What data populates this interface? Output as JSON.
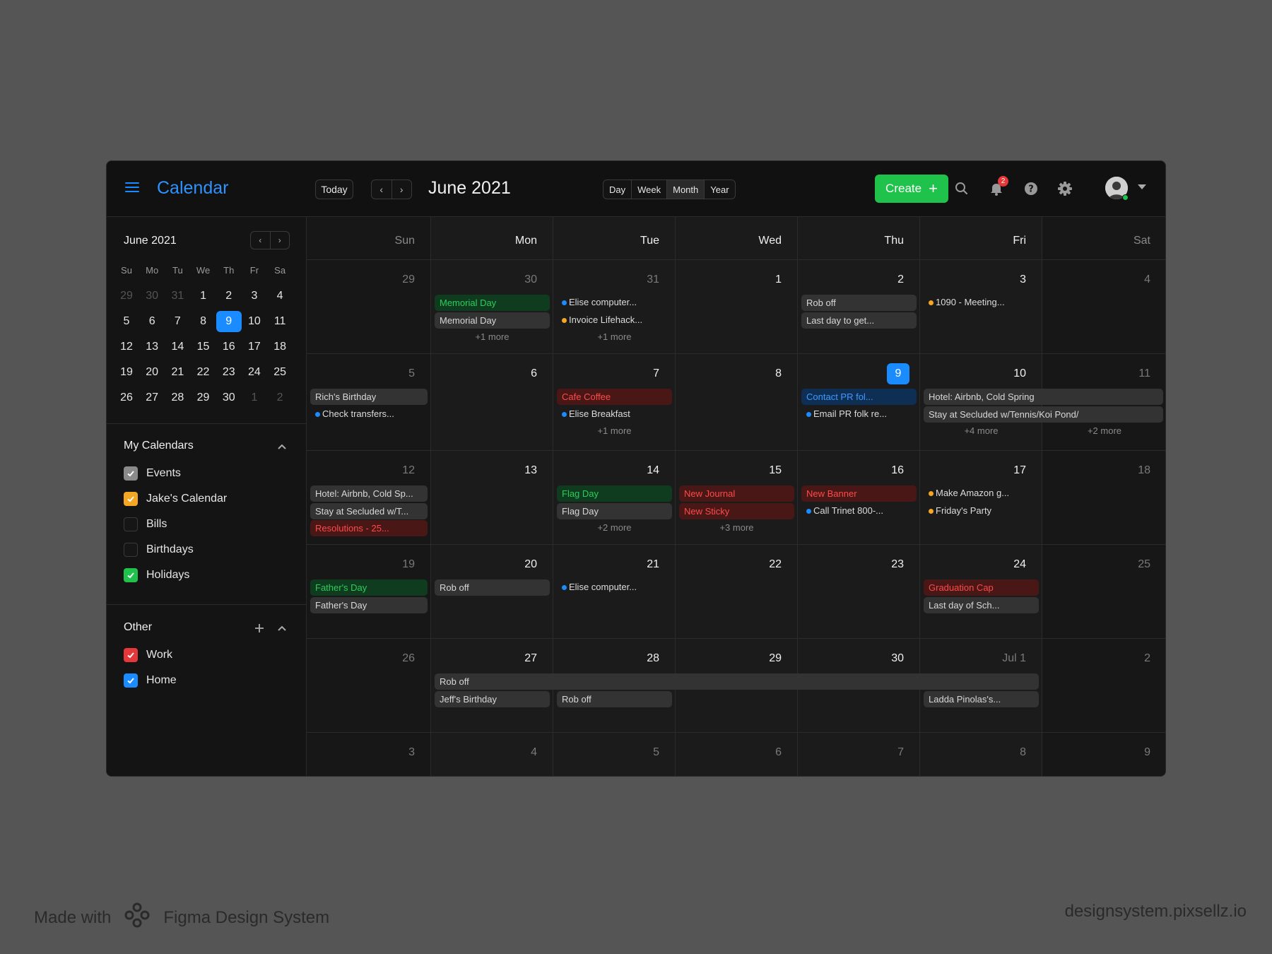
{
  "header": {
    "app_title": "Calendar",
    "today_label": "Today",
    "prev_label": "‹",
    "next_label": "›",
    "month_title": "June 2021",
    "views": [
      "Day",
      "Week",
      "Month",
      "Year"
    ],
    "active_view": "Month",
    "create_label": "Create",
    "create_plus": "+",
    "notification_count": "2",
    "icons": [
      "menu-icon",
      "search-icon",
      "bell-icon",
      "help-icon",
      "gear-icon",
      "avatar",
      "chevron-down-icon"
    ]
  },
  "mini_calendar": {
    "title": "June 2021",
    "prev_label": "‹",
    "next_label": "›",
    "weekdays": [
      "Su",
      "Mo",
      "Tu",
      "We",
      "Th",
      "Fr",
      "Sa"
    ],
    "weeks": [
      [
        "29",
        "30",
        "31",
        "1",
        "2",
        "3",
        "4"
      ],
      [
        "5",
        "6",
        "7",
        "8",
        "9",
        "10",
        "11"
      ],
      [
        "12",
        "13",
        "14",
        "15",
        "16",
        "17",
        "18"
      ],
      [
        "19",
        "20",
        "21",
        "22",
        "23",
        "24",
        "25"
      ],
      [
        "26",
        "27",
        "28",
        "29",
        "30",
        "1",
        "2"
      ]
    ],
    "selected": "9"
  },
  "my_calendars": {
    "title": "My Calendars",
    "items": [
      {
        "label": "Events",
        "checked": true,
        "color": "#8a8a8a"
      },
      {
        "label": "Jake's Calendar",
        "checked": true,
        "color": "#f5a623"
      },
      {
        "label": "Bills",
        "checked": false,
        "color": ""
      },
      {
        "label": "Birthdays",
        "checked": false,
        "color": ""
      },
      {
        "label": "Holidays",
        "checked": true,
        "color": "#1fc24a"
      }
    ]
  },
  "other_calendars": {
    "title": "Other",
    "items": [
      {
        "label": "Work",
        "checked": true,
        "color": "#e5383b"
      },
      {
        "label": "Home",
        "checked": true,
        "color": "#1a8cff"
      }
    ]
  },
  "grid": {
    "weekday_headers": [
      "Sun",
      "Mon",
      "Tue",
      "Wed",
      "Thu",
      "Fri",
      "Sat"
    ],
    "weeks": [
      [
        "29",
        "30",
        "31",
        "1",
        "2",
        "3",
        "4"
      ],
      [
        "5",
        "6",
        "7",
        "8",
        "9",
        "10",
        "11"
      ],
      [
        "12",
        "13",
        "14",
        "15",
        "16",
        "17",
        "18"
      ],
      [
        "19",
        "20",
        "21",
        "22",
        "23",
        "24",
        "25"
      ],
      [
        "26",
        "27",
        "28",
        "29",
        "30",
        "Jul 1",
        "2"
      ],
      [
        "3",
        "4",
        "5",
        "6",
        "7",
        "8",
        "9"
      ]
    ],
    "today": "9",
    "events": [
      {
        "week": 0,
        "day": 1,
        "slot": 0,
        "span": 1,
        "kind": "green",
        "title": "Memorial Day"
      },
      {
        "week": 0,
        "day": 1,
        "slot": 1,
        "span": 1,
        "kind": "gray",
        "title": "Memorial Day"
      },
      {
        "week": 0,
        "day": 1,
        "slot": 2,
        "kind": "more",
        "title": "+1 more"
      },
      {
        "week": 0,
        "day": 2,
        "slot": 0,
        "kind": "dot",
        "dot": "#1a8cff",
        "title": "Elise computer..."
      },
      {
        "week": 0,
        "day": 2,
        "slot": 1,
        "kind": "dot",
        "dot": "#f5a623",
        "title": "Invoice Lifehack..."
      },
      {
        "week": 0,
        "day": 2,
        "slot": 2,
        "kind": "more",
        "title": "+1 more"
      },
      {
        "week": 0,
        "day": 4,
        "slot": 0,
        "span": 1,
        "kind": "gray",
        "title": "Rob off"
      },
      {
        "week": 0,
        "day": 4,
        "slot": 1,
        "span": 1,
        "kind": "gray",
        "title": "Last day to get..."
      },
      {
        "week": 0,
        "day": 5,
        "slot": 0,
        "kind": "dot",
        "dot": "#f5a623",
        "title": "1090 - Meeting..."
      },
      {
        "week": 1,
        "day": 0,
        "slot": 0,
        "span": 1,
        "kind": "gray",
        "title": "Rich's Birthday"
      },
      {
        "week": 1,
        "day": 0,
        "slot": 1,
        "kind": "dot",
        "dot": "#1a8cff",
        "title": "Check transfers..."
      },
      {
        "week": 1,
        "day": 2,
        "slot": 0,
        "span": 1,
        "kind": "red",
        "title": "Cafe Coffee"
      },
      {
        "week": 1,
        "day": 2,
        "slot": 1,
        "kind": "dot",
        "dot": "#1a8cff",
        "title": "Elise Breakfast"
      },
      {
        "week": 1,
        "day": 2,
        "slot": 2,
        "kind": "more",
        "title": "+1 more"
      },
      {
        "week": 1,
        "day": 4,
        "slot": 0,
        "span": 1,
        "kind": "blue",
        "title": "Contact PR fol..."
      },
      {
        "week": 1,
        "day": 4,
        "slot": 1,
        "kind": "dot",
        "dot": "#1a8cff",
        "title": "Email PR folk re..."
      },
      {
        "week": 1,
        "day": 5,
        "slot": 0,
        "span": 2,
        "kind": "gray",
        "title": "Hotel: Airbnb, Cold Spring"
      },
      {
        "week": 1,
        "day": 5,
        "slot": 1,
        "span": 2,
        "kind": "gray",
        "title": "Stay at Secluded w/Tennis/Koi Pond/"
      },
      {
        "week": 1,
        "day": 5,
        "slot": 2,
        "kind": "more",
        "title": "+4 more"
      },
      {
        "week": 1,
        "day": 6,
        "slot": 2,
        "kind": "more",
        "title": "+2 more"
      },
      {
        "week": 2,
        "day": 0,
        "slot": 0,
        "span": 1,
        "kind": "gray",
        "title": "Hotel: Airbnb, Cold Sp..."
      },
      {
        "week": 2,
        "day": 0,
        "slot": 1,
        "span": 1,
        "kind": "gray",
        "title": "Stay at Secluded w/T..."
      },
      {
        "week": 2,
        "day": 0,
        "slot": 2,
        "span": 1,
        "kind": "red",
        "title": "Resolutions - 25..."
      },
      {
        "week": 2,
        "day": 2,
        "slot": 0,
        "span": 1,
        "kind": "green",
        "title": "Flag Day"
      },
      {
        "week": 2,
        "day": 2,
        "slot": 1,
        "span": 1,
        "kind": "gray",
        "title": "Flag Day"
      },
      {
        "week": 2,
        "day": 2,
        "slot": 2,
        "kind": "more",
        "title": "+2 more"
      },
      {
        "week": 2,
        "day": 3,
        "slot": 0,
        "span": 1,
        "kind": "red",
        "title": "New Journal"
      },
      {
        "week": 2,
        "day": 3,
        "slot": 1,
        "span": 1,
        "kind": "red",
        "title": "New Sticky"
      },
      {
        "week": 2,
        "day": 3,
        "slot": 2,
        "kind": "more",
        "title": "+3 more"
      },
      {
        "week": 2,
        "day": 4,
        "slot": 0,
        "span": 1,
        "kind": "red",
        "title": "New Banner"
      },
      {
        "week": 2,
        "day": 4,
        "slot": 1,
        "kind": "dot",
        "dot": "#1a8cff",
        "title": "Call Trinet 800-..."
      },
      {
        "week": 2,
        "day": 5,
        "slot": 0,
        "kind": "dot",
        "dot": "#f5a623",
        "title": "Make Amazon g..."
      },
      {
        "week": 2,
        "day": 5,
        "slot": 1,
        "kind": "dot",
        "dot": "#f5a623",
        "title": "Friday's Party"
      },
      {
        "week": 3,
        "day": 0,
        "slot": 0,
        "span": 1,
        "kind": "green",
        "title": "Father's Day"
      },
      {
        "week": 3,
        "day": 0,
        "slot": 1,
        "span": 1,
        "kind": "gray",
        "title": "Father's Day"
      },
      {
        "week": 3,
        "day": 1,
        "slot": 0,
        "span": 1,
        "kind": "gray",
        "title": "Rob off"
      },
      {
        "week": 3,
        "day": 2,
        "slot": 0,
        "kind": "dot",
        "dot": "#1a8cff",
        "title": "Elise computer..."
      },
      {
        "week": 3,
        "day": 5,
        "slot": 0,
        "span": 1,
        "kind": "red",
        "title": "Graduation Cap"
      },
      {
        "week": 3,
        "day": 5,
        "slot": 1,
        "span": 1,
        "kind": "gray",
        "title": "Last day of Sch..."
      },
      {
        "week": 4,
        "day": 1,
        "slot": 0,
        "span": 5,
        "kind": "gray",
        "title": "Rob off"
      },
      {
        "week": 4,
        "day": 1,
        "slot": 1,
        "span": 1,
        "kind": "gray",
        "title": "Jeff's Birthday"
      },
      {
        "week": 4,
        "day": 2,
        "slot": 1,
        "span": 1,
        "kind": "gray",
        "title": "Rob off"
      },
      {
        "week": 4,
        "day": 5,
        "slot": 1,
        "span": 1,
        "kind": "gray",
        "title": "Ladda Pinolas's..."
      }
    ]
  },
  "footer": {
    "made_with": "Made with",
    "brand": "Figma Design System",
    "site": "designsystem.pixsellz.io"
  }
}
